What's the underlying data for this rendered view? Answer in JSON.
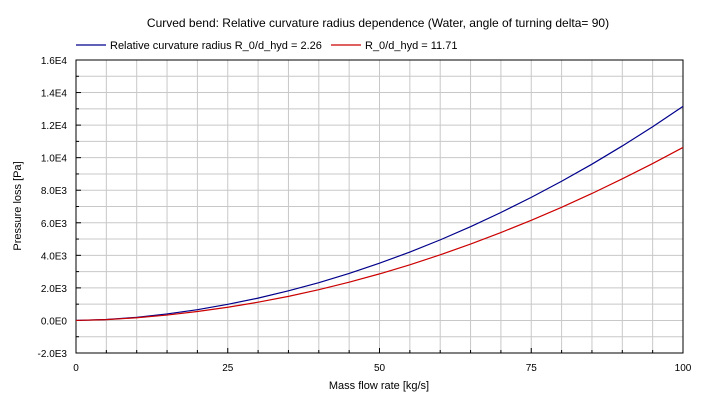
{
  "chart_data": {
    "type": "line",
    "title": "Curved bend: Relative curvature radius dependence (Water, angle of turning delta= 90)",
    "xlabel": "Mass flow rate [kg/s]",
    "ylabel": "Pressure loss [Pa]",
    "xlim": [
      0,
      100
    ],
    "ylim": [
      -2000,
      16000
    ],
    "x_ticks": [
      0,
      25,
      50,
      75,
      100
    ],
    "x_tick_labels": [
      "0",
      "25",
      "50",
      "75",
      "100"
    ],
    "y_ticks": [
      -2000,
      0,
      2000,
      4000,
      6000,
      8000,
      10000,
      12000,
      14000,
      16000
    ],
    "y_tick_labels": [
      "-2.0E3",
      "0.0E0",
      "2.0E3",
      "4.0E3",
      "6.0E3",
      "8.0E3",
      "1.0E4",
      "1.2E4",
      "1.4E4",
      "1.6E4"
    ],
    "grid": true,
    "legend_position": "top",
    "series": [
      {
        "name": "Relative curvature radius R_0/d_hyd = 2.26",
        "color": "#00008b",
        "x": [
          0,
          5,
          10,
          15,
          20,
          25,
          30,
          35,
          40,
          45,
          50,
          55,
          60,
          65,
          70,
          75,
          80,
          85,
          90,
          95,
          100
        ],
        "y": [
          0,
          60,
          190,
          400,
          660,
          990,
          1370,
          1820,
          2320,
          2890,
          3520,
          4200,
          4950,
          5760,
          6630,
          7560,
          8550,
          9600,
          10720,
          11900,
          13150
        ]
      },
      {
        "name": "R_0/d_hyd = 11.71",
        "color": "#cc0000",
        "x": [
          0,
          5,
          10,
          15,
          20,
          25,
          30,
          35,
          40,
          45,
          50,
          55,
          60,
          65,
          70,
          75,
          80,
          85,
          90,
          95,
          100
        ],
        "y": [
          0,
          50,
          165,
          330,
          550,
          810,
          1120,
          1480,
          1890,
          2350,
          2860,
          3420,
          4030,
          4690,
          5400,
          6150,
          6950,
          7800,
          8700,
          9640,
          10630
        ]
      }
    ]
  }
}
